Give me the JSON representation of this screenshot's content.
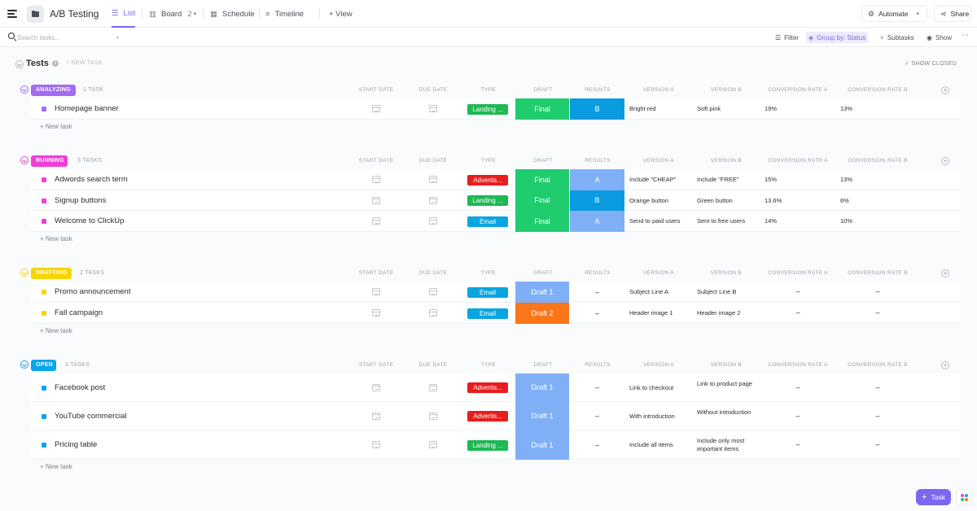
{
  "header": {
    "title": "A/B Testing",
    "tabs": [
      {
        "label": "List",
        "active": true
      },
      {
        "label": "Board",
        "count": "2"
      },
      {
        "label": "Schedule"
      },
      {
        "label": "Timeline"
      }
    ],
    "add_view": "+ View",
    "automate": "Automate",
    "share": "Share"
  },
  "toolbar": {
    "search_placeholder": "Search tasks...",
    "filter": "Filter",
    "group_by": "Group by: Status",
    "subtasks": "Subtasks",
    "show": "Show"
  },
  "list": {
    "title": "Tests",
    "new_task": "+ NEW TASK",
    "show_closed": "SHOW CLOSED",
    "new_task_row": "+ New task"
  },
  "columns": [
    "START DATE",
    "DUE DATE",
    "TYPE",
    "DRAFT",
    "RESULTS",
    "VERSION A",
    "VERSION B",
    "CONVERSION RATE A",
    "CONVERSION RATE B"
  ],
  "groups": [
    {
      "status": "ANALYZING",
      "count": "1 TASK",
      "color": "#a36bef",
      "tasks": [
        {
          "name": "Homepage banner",
          "type": "Landing ...",
          "type_color": "#1db954",
          "draft": "Final",
          "draft_color": "#1fcc6e",
          "results": "B",
          "results_color": "#0a9be0",
          "version_a": "Bright red",
          "version_b": "Soft pink",
          "rate_a": "19%",
          "rate_b": "13%"
        }
      ]
    },
    {
      "status": "RUNNING",
      "count": "3 TASKS",
      "color": "#f03fd7",
      "tasks": [
        {
          "name": "Adwords search term",
          "type": "Advertis...",
          "type_color": "#e61e1e",
          "draft": "Final",
          "draft_color": "#1fcc6e",
          "results": "A",
          "results_color": "#7fb0f6",
          "version_a": "Include \"CHEAP\"",
          "version_b": "Include \"FREE\"",
          "rate_a": "15%",
          "rate_b": "13%"
        },
        {
          "name": "Signup buttons",
          "type": "Landing ...",
          "type_color": "#1db954",
          "draft": "Final",
          "draft_color": "#1fcc6e",
          "results": "B",
          "results_color": "#0a9be0",
          "version_a": "Orange button",
          "version_b": "Green button",
          "rate_a": "13.6%",
          "rate_b": "6%"
        },
        {
          "name": "Welcome to ClickUp",
          "type": "Email",
          "type_color": "#0aa5e0",
          "draft": "Final",
          "draft_color": "#1fcc6e",
          "results": "A",
          "results_color": "#7fb0f6",
          "version_a": "Send to paid users",
          "version_b": "Sent to free users",
          "rate_a": "14%",
          "rate_b": "10%"
        }
      ]
    },
    {
      "status": "DRAFTING",
      "count": "2 TASKS",
      "color": "#f7d500",
      "tasks": [
        {
          "name": "Promo announcement",
          "type": "Email",
          "type_color": "#0aa5e0",
          "draft": "Draft 1",
          "draft_color": "#7fb0f6",
          "results": "–",
          "results_color": "",
          "version_a": "Subject Line A",
          "version_b": "Subject Line B",
          "rate_a": "–",
          "rate_b": "–"
        },
        {
          "name": "Fall campaign",
          "type": "Email",
          "type_color": "#0aa5e0",
          "draft": "Draft 2",
          "draft_color": "#fb7618",
          "results": "–",
          "results_color": "",
          "version_a": "Header image 1",
          "version_b": "Header image 2",
          "rate_a": "–",
          "rate_b": "–"
        }
      ]
    },
    {
      "status": "OPEN",
      "count": "3 TASKS",
      "color": "#0aa5f0",
      "tasks": [
        {
          "name": "Facebook post",
          "type": "Advertis...",
          "type_color": "#e61e1e",
          "draft": "Draft 1",
          "draft_color": "#7fb0f6",
          "results": "–",
          "results_color": "",
          "version_a": "Link to checkout",
          "version_b": "Link to product page",
          "rate_a": "–",
          "rate_b": "–"
        },
        {
          "name": "YouTube commercial",
          "type": "Advertis...",
          "type_color": "#e61e1e",
          "draft": "Draft 1",
          "draft_color": "#7fb0f6",
          "results": "–",
          "results_color": "",
          "version_a": "With introduction",
          "version_b": "Without introduction",
          "rate_a": "–",
          "rate_b": "–"
        },
        {
          "name": "Pricing table",
          "type": "Landing ...",
          "type_color": "#1db954",
          "draft": "Draft 1",
          "draft_color": "#7fb0f6",
          "results": "–",
          "results_color": "",
          "version_a": "Include all items",
          "version_b": "Include only most important items",
          "rate_a": "–",
          "rate_b": "–"
        }
      ]
    }
  ],
  "fab": {
    "label": "Task"
  },
  "icons": {
    "menu": "hamburger-icon",
    "folder": "folder-icon",
    "list": "list-icon",
    "board": "board-icon",
    "schedule": "calendar-icon",
    "timeline": "timeline-icon",
    "automate": "robot-icon",
    "share": "share-icon",
    "search": "search-icon",
    "filter": "filter-icon",
    "group": "layers-icon",
    "subtasks": "subtasks-icon",
    "show": "eye-icon"
  }
}
